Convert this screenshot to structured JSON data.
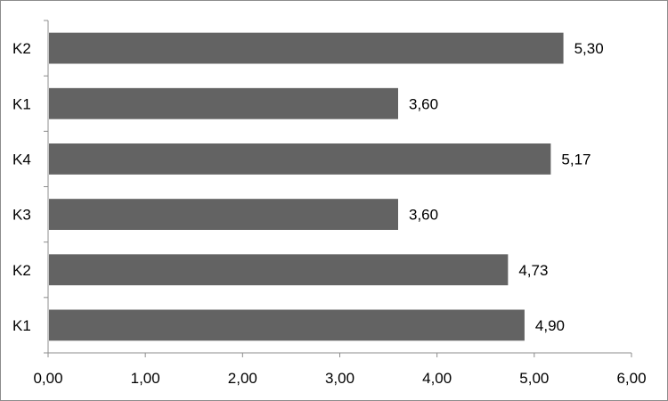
{
  "chart_data": {
    "type": "bar",
    "orientation": "horizontal",
    "categories": [
      "K1",
      "K2",
      "K3",
      "K4",
      "K1",
      "K2"
    ],
    "values": [
      4.9,
      4.73,
      3.6,
      5.17,
      3.6,
      5.3
    ],
    "value_labels": [
      "4,90",
      "4,73",
      "3,60",
      "5,17",
      "3,60",
      "5,30"
    ],
    "xlim": [
      0,
      6
    ],
    "x_ticks": [
      "0,00",
      "1,00",
      "2,00",
      "3,00",
      "4,00",
      "5,00",
      "6,00"
    ],
    "title": "",
    "xlabel": "",
    "ylabel": "",
    "grid": false,
    "legend": "none",
    "bar_color": "#636363"
  }
}
